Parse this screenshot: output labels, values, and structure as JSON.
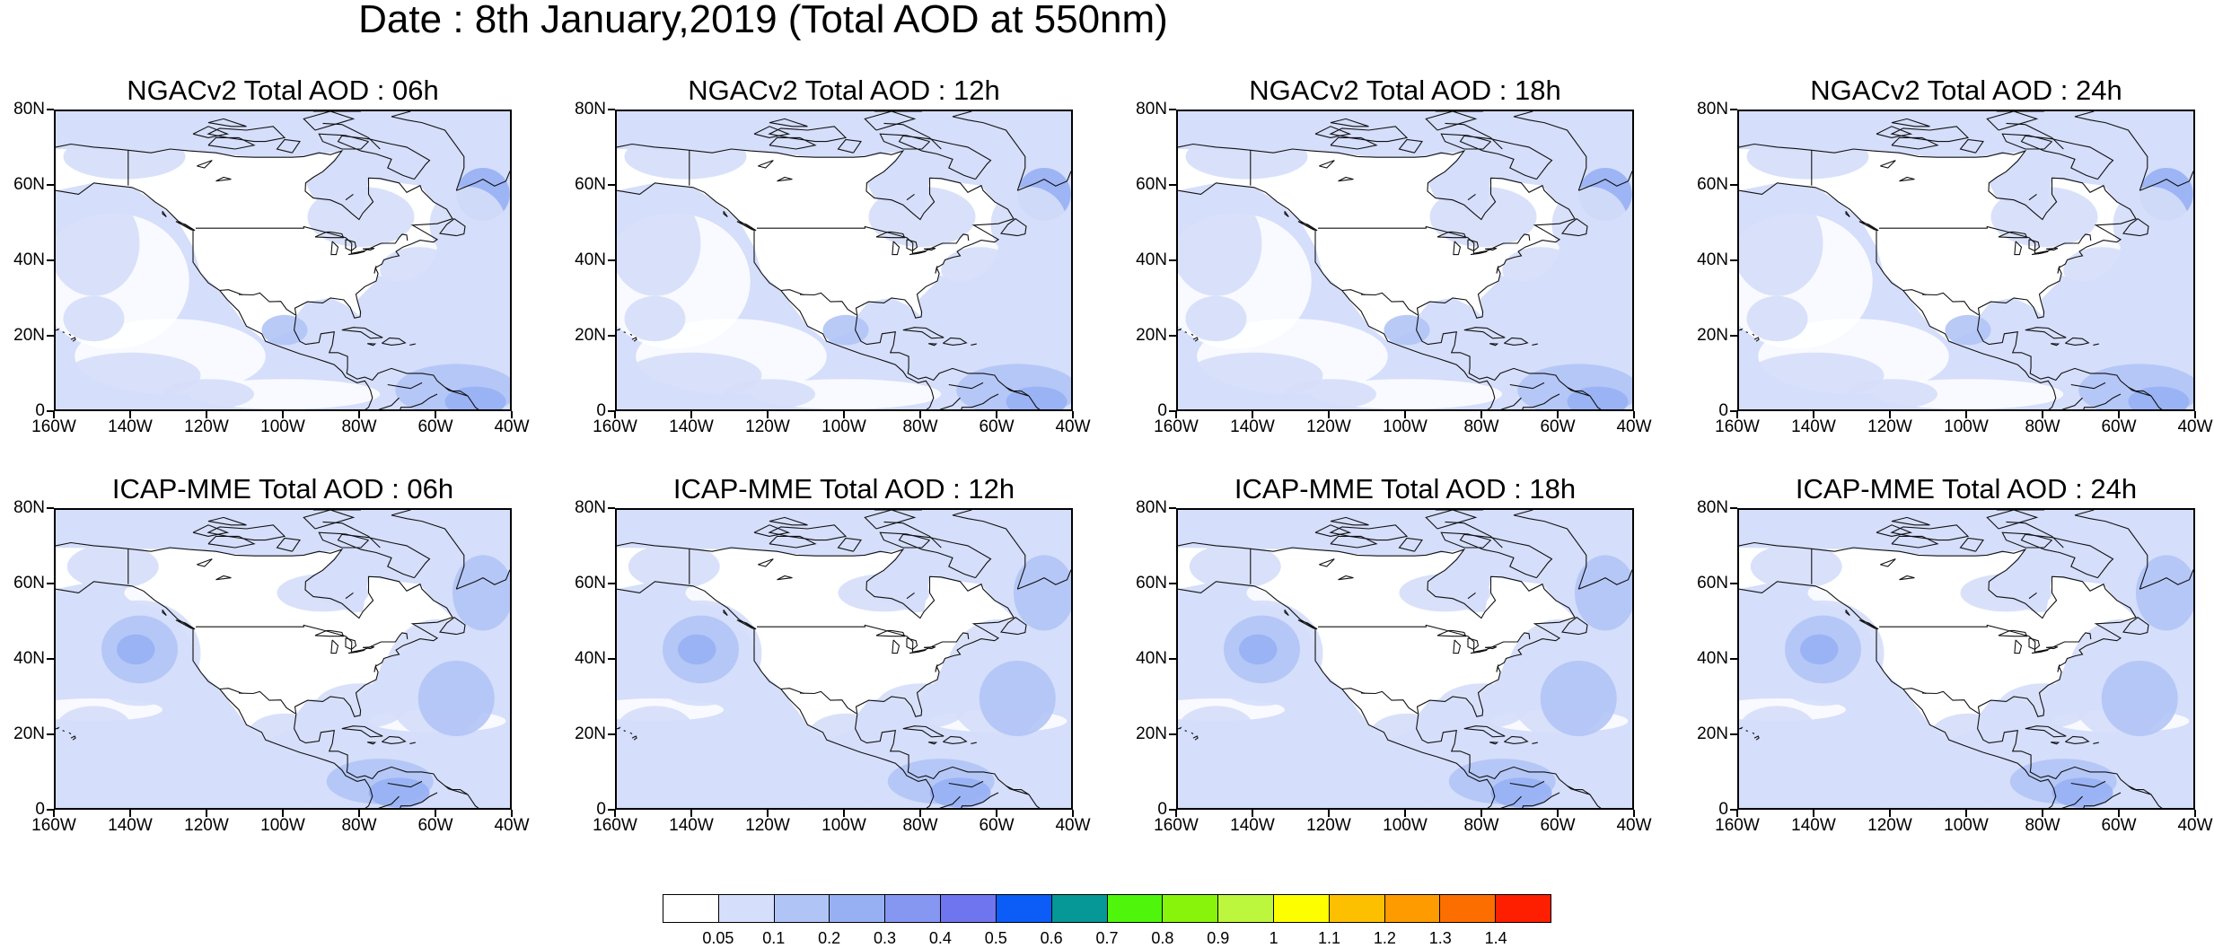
{
  "title": "Date : 8th January,2019 (Total AOD at 550nm)",
  "panels": [
    {
      "title": "NGACv2 Total AOD : 06h",
      "model": "NGACv2",
      "hour": "06h"
    },
    {
      "title": "NGACv2 Total AOD : 12h",
      "model": "NGACv2",
      "hour": "12h"
    },
    {
      "title": "NGACv2 Total AOD : 18h",
      "model": "NGACv2",
      "hour": "18h"
    },
    {
      "title": "NGACv2 Total AOD : 24h",
      "model": "NGACv2",
      "hour": "24h"
    },
    {
      "title": "ICAP-MME Total AOD : 06h",
      "model": "ICAP-MME",
      "hour": "06h"
    },
    {
      "title": "ICAP-MME Total AOD : 12h",
      "model": "ICAP-MME",
      "hour": "12h"
    },
    {
      "title": "ICAP-MME Total AOD : 18h",
      "model": "ICAP-MME",
      "hour": "18h"
    },
    {
      "title": "ICAP-MME Total AOD : 24h",
      "model": "ICAP-MME",
      "hour": "24h"
    }
  ],
  "lat_labels": [
    "80N",
    "60N",
    "40N",
    "20N",
    "0"
  ],
  "lon_labels": [
    "160W",
    "140W",
    "120W",
    "100W",
    "80W",
    "60W",
    "40W"
  ],
  "colorbar": {
    "labels": [
      "0.05",
      "0.1",
      "0.2",
      "0.3",
      "0.4",
      "0.5",
      "0.6",
      "0.7",
      "0.8",
      "0.9",
      "1",
      "1.1",
      "1.2",
      "1.3",
      "1.4"
    ],
    "colors": [
      "#ffffff",
      "#d5defa",
      "#b1c4f6",
      "#97b0f4",
      "#8597f0",
      "#6e75ee",
      "#0c5cf8",
      "#069797",
      "#50f50c",
      "#88f40c",
      "#bcf63d",
      "#fdfe00",
      "#fdc000",
      "#fe9b00",
      "#fd6e00",
      "#fe1e00"
    ]
  }
}
